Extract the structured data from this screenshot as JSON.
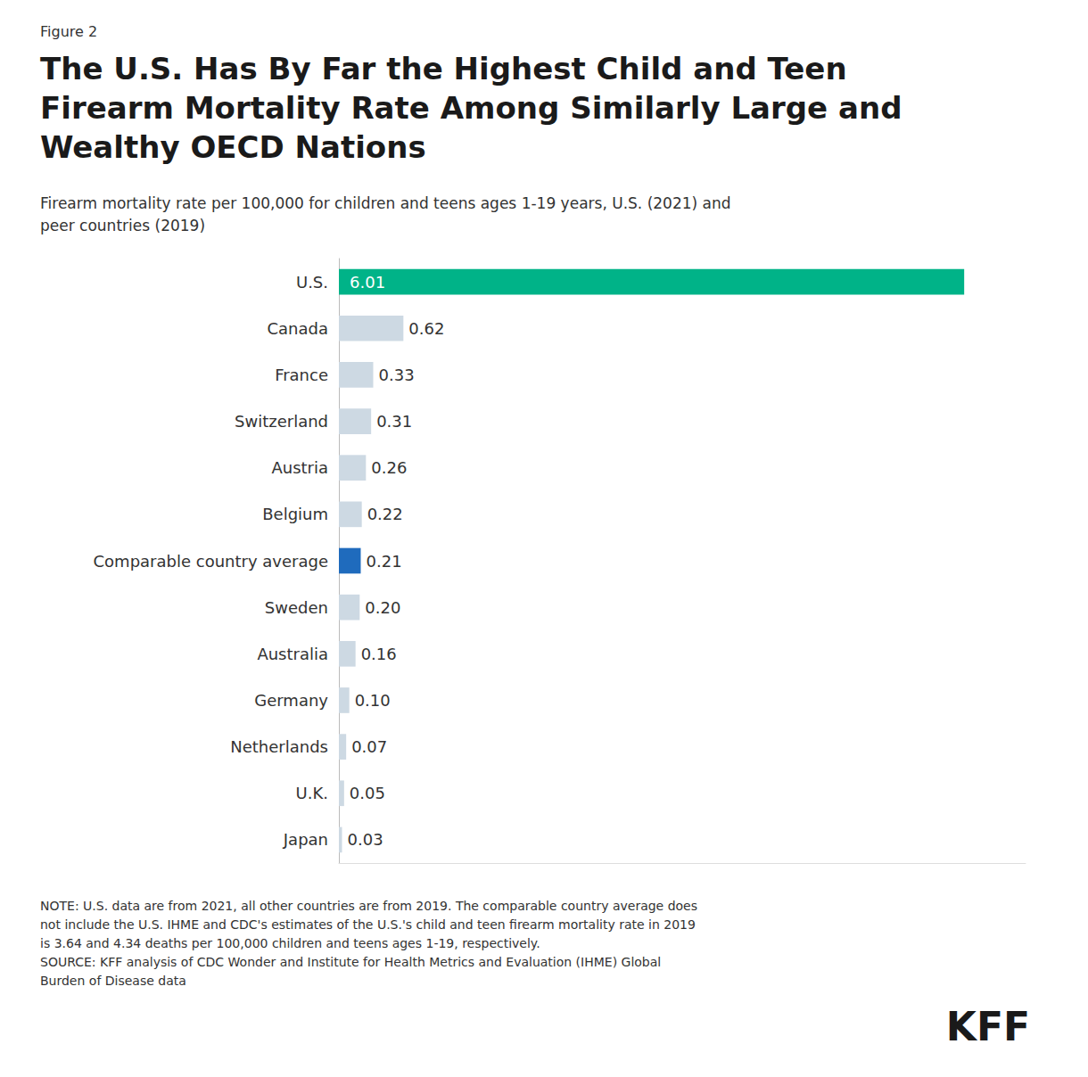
{
  "chart_data": {
    "type": "bar",
    "orientation": "horizontal",
    "title": "The U.S. Has By Far the Highest Child and Teen\nFirearm Mortality Rate Among Similarly Large and\nWealthy OECD Nations",
    "subtitle": "Firearm mortality rate per 100,000 for children and teens ages 1-19 years, U.S. (2021) and\npeer countries (2019)",
    "annotations": [
      "Figure 2",
      "NOTE: U.S. data are from 2021, all other countries are from 2019. The comparable country average does\nnot include the U.S. IHME and CDC's estimates of the U.S.'s child and teen firearm mortality rate in 2019\nis 3.64 and 4.34 deaths per 100,000 children and teens ages 1-19, respectively.\nSOURCE: KFF analysis of CDC Wonder and Institute for Health Metrics and Evaluation (IHME) Global\nBurden of Disease data",
      "KFF"
    ],
    "categories": [
      "U.S.",
      "Canada",
      "France",
      "Switzerland",
      "Austria",
      "Belgium",
      "Comparable country average",
      "Sweden",
      "Australia",
      "Germany",
      "Netherlands",
      "U.K.",
      "Japan"
    ],
    "values": [
      6.01,
      0.62,
      0.33,
      0.31,
      0.26,
      0.22,
      0.21,
      0.2,
      0.16,
      0.1,
      0.07,
      0.05,
      0.03
    ],
    "value_labels": [
      "6.01",
      "0.62",
      "0.33",
      "0.31",
      "0.26",
      "0.22",
      "0.21",
      "0.20",
      "0.16",
      "0.10",
      "0.07",
      "0.05",
      "0.03"
    ],
    "colors": [
      "#00B388",
      "#cdd9e3",
      "#cdd9e3",
      "#cdd9e3",
      "#cdd9e3",
      "#cdd9e3",
      "#1f6bbd",
      "#cdd9e3",
      "#cdd9e3",
      "#cdd9e3",
      "#cdd9e3",
      "#cdd9e3",
      "#cdd9e3"
    ],
    "xlim": [
      0,
      6.6
    ],
    "data_labels": true,
    "tick_labels": "y",
    "grid": false
  }
}
